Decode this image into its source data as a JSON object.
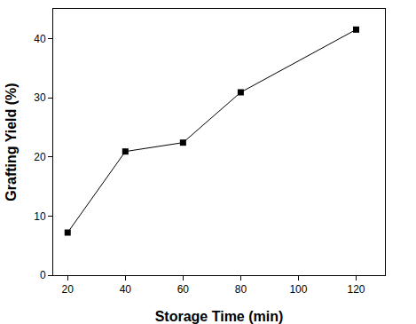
{
  "chart_data": {
    "type": "line",
    "x_label": "Storage Time (min)",
    "y_label": "Grafting Yield (%)",
    "x": [
      20,
      40,
      60,
      80,
      120
    ],
    "values": [
      7.2,
      20.9,
      22.4,
      30.9,
      41.5
    ],
    "color": "#000000",
    "marker": "square",
    "line_style": "solid",
    "xlim": [
      15,
      130
    ],
    "ylim": [
      0,
      45
    ],
    "xticks": [
      20,
      40,
      60,
      80,
      100,
      120
    ],
    "yticks": [
      0,
      10,
      20,
      30,
      40
    ],
    "grid": false
  }
}
